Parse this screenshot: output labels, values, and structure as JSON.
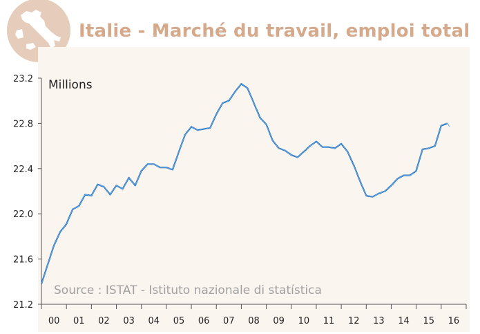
{
  "title": "Italie - Marché du travail, emploi total",
  "logo": "italy-map-logo",
  "colors": {
    "title": "#d4a98c",
    "logo_circle": "#e6cdbb",
    "plot_bg": "#fbf5f0",
    "line_smooth": "#1a6fc0",
    "line_raw": "#6fa6dc",
    "source_text": "#a0a0a0"
  },
  "chart_data": {
    "type": "line",
    "title": "Italie - Marché du travail, emploi total",
    "ylabel": "Millions",
    "source": "Source : ISTAT - Istituto nazionale di statística",
    "ylim": [
      21.2,
      23.2
    ],
    "xlim": [
      2000.0,
      2017.0
    ],
    "yticks": [
      "21.2",
      "21.6",
      "22.0",
      "22.4",
      "22.8",
      "23.2"
    ],
    "xtick_labels": [
      "00",
      "01",
      "02",
      "03",
      "04",
      "05",
      "06",
      "07",
      "08",
      "09",
      "10",
      "11",
      "12",
      "13",
      "14",
      "15",
      "16"
    ],
    "grid": false,
    "legend": "none",
    "series": [
      {
        "x": [
          2000.0,
          2000.25,
          2000.5,
          2000.75,
          2001.0,
          2001.25,
          2001.5,
          2001.75,
          2002.0,
          2002.25,
          2002.5,
          2002.75,
          2003.0,
          2003.25,
          2003.5,
          2003.75,
          2004.0,
          2004.25,
          2004.5,
          2004.75,
          2005.0,
          2005.25,
          2005.5,
          2005.75,
          2006.0,
          2006.25,
          2006.5,
          2006.75,
          2007.0,
          2007.25,
          2007.5,
          2007.75,
          2008.0,
          2008.25,
          2008.5,
          2008.75,
          2009.0,
          2009.25,
          2009.5,
          2009.75,
          2010.0,
          2010.25,
          2010.5,
          2010.75,
          2011.0,
          2011.25,
          2011.5,
          2011.75,
          2012.0,
          2012.25,
          2012.5,
          2012.75,
          2013.0,
          2013.25,
          2013.5,
          2013.75,
          2014.0,
          2014.25,
          2014.5,
          2014.75,
          2015.0,
          2015.25,
          2015.5,
          2015.75,
          2016.0,
          2016.25
        ],
        "values": [
          21.38,
          21.55,
          21.72,
          21.84,
          21.91,
          22.04,
          22.07,
          22.17,
          22.16,
          22.26,
          22.24,
          22.17,
          22.25,
          22.22,
          22.32,
          22.25,
          22.38,
          22.44,
          22.44,
          22.41,
          22.41,
          22.39,
          22.55,
          22.7,
          22.77,
          22.74,
          22.75,
          22.76,
          22.88,
          22.98,
          23.0,
          23.08,
          23.15,
          23.11,
          22.98,
          22.85,
          22.79,
          22.65,
          22.58,
          22.56,
          22.52,
          22.5,
          22.55,
          22.6,
          22.64,
          22.59,
          22.59,
          22.58,
          22.62,
          22.55,
          22.43,
          22.29,
          22.16,
          22.15,
          22.18,
          22.2,
          22.25,
          22.31,
          22.34,
          22.34,
          22.38,
          22.57,
          22.58,
          22.6,
          22.78,
          22.8
        ]
      },
      {
        "x": [
          2000.0,
          2000.0833,
          2000.1667,
          2000.25,
          2000.3333,
          2000.4167,
          2000.5,
          2000.5833,
          2000.6667,
          2000.75,
          2000.8333,
          2000.9167,
          2001.0,
          2001.0833,
          2001.1667,
          2001.25,
          2001.3333,
          2001.4167,
          2001.5,
          2001.5833,
          2001.6667,
          2001.75,
          2001.8333,
          2001.9167,
          2002.0,
          2002.0833,
          2002.1667,
          2002.25,
          2002.3333,
          2002.4167,
          2002.5,
          2002.5833,
          2002.6667,
          2002.75,
          2002.8333,
          2002.9167,
          2003.0,
          2003.0833,
          2003.1667,
          2003.25,
          2003.3333,
          2003.4167,
          2003.5,
          2003.5833,
          2003.6667,
          2003.75,
          2003.8333,
          2003.9167,
          2004.0,
          2004.0833,
          2004.1667,
          2004.25,
          2004.3333,
          2004.4167,
          2004.5,
          2004.5833,
          2004.6667,
          2004.75,
          2004.8333,
          2004.9167,
          2005.0,
          2005.0833,
          2005.1667,
          2005.25,
          2005.3333,
          2005.4167,
          2005.5,
          2005.5833,
          2005.6667,
          2005.75,
          2005.8333,
          2005.9167,
          2006.0,
          2006.0833,
          2006.1667,
          2006.25,
          2006.3333,
          2006.4167,
          2006.5,
          2006.5833,
          2006.6667,
          2006.75,
          2006.8333,
          2006.9167,
          2007.0,
          2007.0833,
          2007.1667,
          2007.25,
          2007.3333,
          2007.4167,
          2007.5,
          2007.5833,
          2007.6667,
          2007.75,
          2007.8333,
          2007.9167,
          2008.0,
          2008.0833,
          2008.1667,
          2008.25,
          2008.3333,
          2008.4167,
          2008.5,
          2008.5833,
          2008.6667,
          2008.75,
          2008.8333,
          2008.9167,
          2009.0,
          2009.0833,
          2009.1667,
          2009.25,
          2009.3333,
          2009.4167,
          2009.5,
          2009.5833,
          2009.6667,
          2009.75,
          2009.8333,
          2009.9167,
          2010.0,
          2010.0833,
          2010.1667,
          2010.25,
          2010.3333,
          2010.4167,
          2010.5,
          2010.5833,
          2010.6667,
          2010.75,
          2010.8333,
          2010.9167,
          2011.0,
          2011.0833,
          2011.1667,
          2011.25,
          2011.3333,
          2011.4167,
          2011.5,
          2011.5833,
          2011.6667,
          2011.75,
          2011.8333,
          2011.9167,
          2012.0,
          2012.0833,
          2012.1667,
          2012.25,
          2012.3333,
          2012.4167,
          2012.5,
          2012.5833,
          2012.6667,
          2012.75,
          2012.8333,
          2012.9167,
          2013.0,
          2013.0833,
          2013.1667,
          2013.25,
          2013.3333,
          2013.4167,
          2013.5,
          2013.5833,
          2013.6667,
          2013.75,
          2013.8333,
          2013.9167,
          2014.0,
          2014.0833,
          2014.1667,
          2014.25,
          2014.3333,
          2014.4167,
          2014.5,
          2014.5833,
          2014.6667,
          2014.75,
          2014.8333,
          2014.9167,
          2015.0,
          2015.0833,
          2015.1667,
          2015.25,
          2015.3333,
          2015.4167,
          2015.5,
          2015.5833,
          2015.6667,
          2015.75,
          2015.8333,
          2015.9167,
          2016.0,
          2016.0833,
          2016.1667,
          2016.25,
          2016.3333
        ],
        "values": [
          21.38,
          21.43,
          21.49,
          21.55,
          21.61,
          21.66,
          21.72,
          21.76,
          21.8,
          21.84,
          21.86,
          21.89,
          21.91,
          21.95,
          22.0,
          22.04,
          22.05,
          22.06,
          22.07,
          22.1,
          22.14,
          22.17,
          22.17,
          22.16,
          22.16,
          22.19,
          22.23,
          22.26,
          22.25,
          22.25,
          22.24,
          22.22,
          22.19,
          22.17,
          22.2,
          22.22,
          22.25,
          22.24,
          22.23,
          22.22,
          22.25,
          22.29,
          22.32,
          22.3,
          22.27,
          22.25,
          22.29,
          22.34,
          22.38,
          22.4,
          22.42,
          22.44,
          22.44,
          22.44,
          22.44,
          22.43,
          22.42,
          22.41,
          22.41,
          22.41,
          22.41,
          22.4,
          22.4,
          22.39,
          22.44,
          22.5,
          22.55,
          22.6,
          22.65,
          22.7,
          22.72,
          22.75,
          22.77,
          22.76,
          22.75,
          22.74,
          22.74,
          22.75,
          22.75,
          22.75,
          22.76,
          22.76,
          22.8,
          22.84,
          22.88,
          22.91,
          22.95,
          22.98,
          22.99,
          22.99,
          23.0,
          23.03,
          23.05,
          23.08,
          23.1,
          23.13,
          23.15,
          23.14,
          23.12,
          23.11,
          23.07,
          23.02,
          22.98,
          22.94,
          22.89,
          22.85,
          22.83,
          22.81,
          22.79,
          22.74,
          22.7,
          22.65,
          22.63,
          22.6,
          22.58,
          22.57,
          22.57,
          22.56,
          22.55,
          22.53,
          22.52,
          22.51,
          22.51,
          22.5,
          22.52,
          22.53,
          22.55,
          22.57,
          22.58,
          22.6,
          22.61,
          22.63,
          22.64,
          22.62,
          22.61,
          22.59,
          22.59,
          22.59,
          22.59,
          22.59,
          22.58,
          22.58,
          22.59,
          22.61,
          22.62,
          22.6,
          22.57,
          22.55,
          22.51,
          22.47,
          22.43,
          22.38,
          22.34,
          22.29,
          22.25,
          22.2,
          22.16,
          22.16,
          22.15,
          22.15,
          22.16,
          22.17,
          22.18,
          22.19,
          22.19,
          22.2,
          22.22,
          22.23,
          22.25,
          22.27,
          22.29,
          22.31,
          22.32,
          22.33,
          22.34,
          22.34,
          22.34,
          22.34,
          22.35,
          22.37,
          22.38,
          22.44,
          22.51,
          22.57,
          22.57,
          22.58,
          22.58,
          22.59,
          22.59,
          22.6,
          22.66,
          22.72,
          22.78,
          22.79,
          22.8,
          22.8,
          22.77
        ]
      }
    ]
  }
}
